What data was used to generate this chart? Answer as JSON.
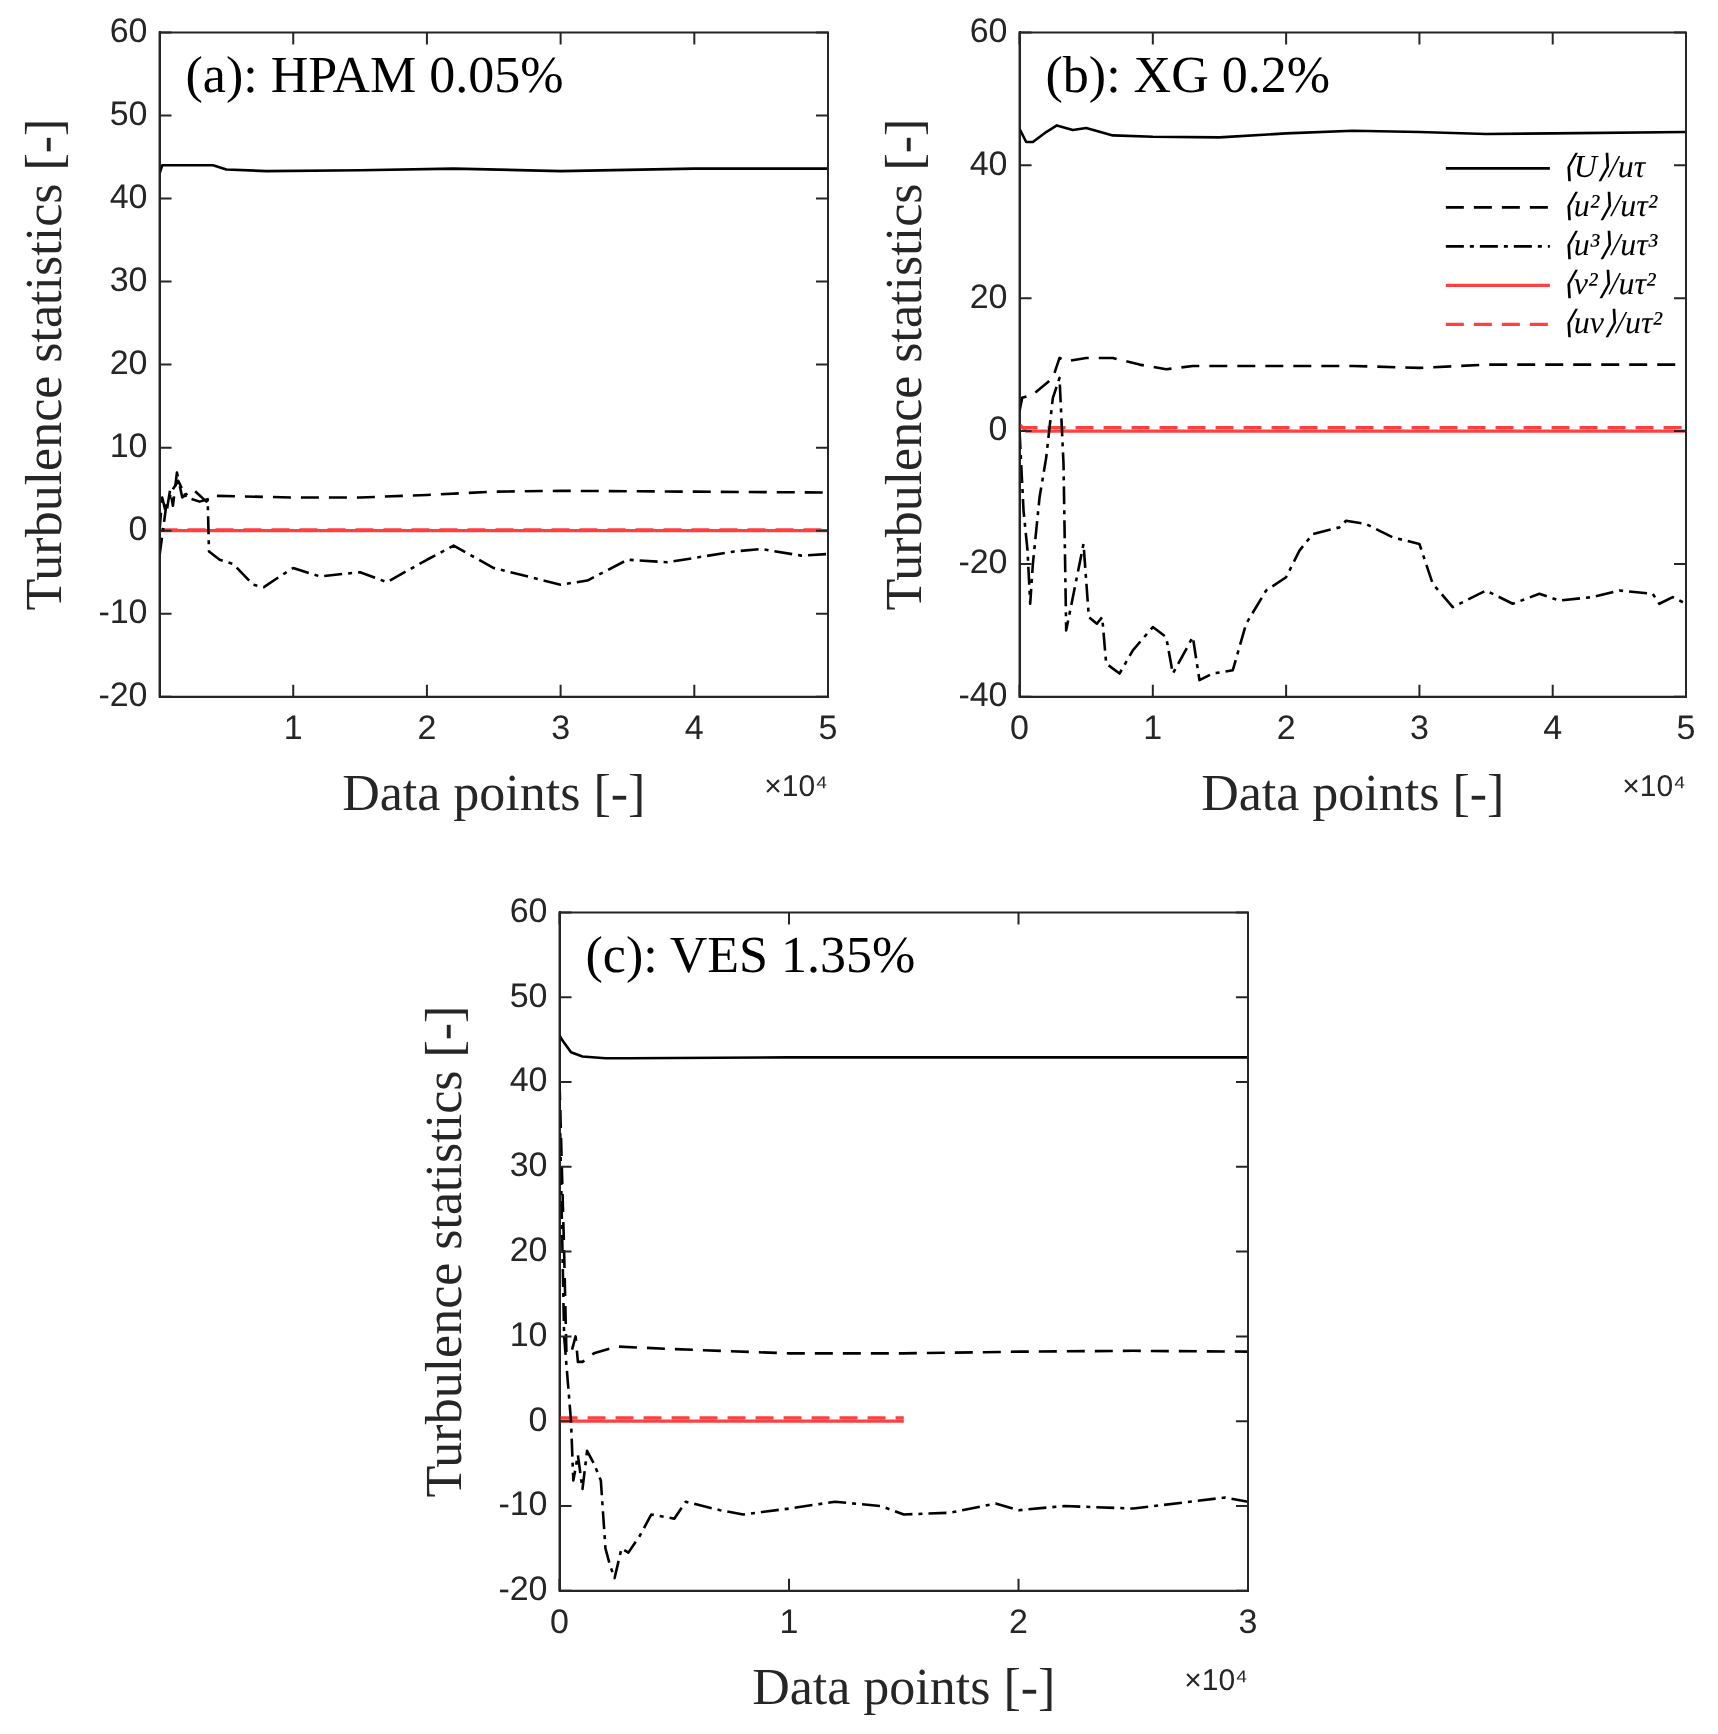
{
  "chart_data": [
    {
      "type": "line",
      "title": "(a): HPAM 0.05%",
      "xlabel": "Data points [-]",
      "ylabel": "Turbulence statistics [-]",
      "annotations": [
        "×10⁴"
      ],
      "xlim": [
        0,
        5
      ],
      "xticks": [
        1,
        2,
        3,
        4,
        5
      ],
      "ylim": [
        -20,
        60
      ],
      "yticks": [
        -20,
        -10,
        0,
        10,
        20,
        30,
        40,
        50,
        60
      ],
      "grid": false,
      "legend": false,
      "marker": "none",
      "series": [
        {
          "color": "#000000",
          "line_style": "solid",
          "x": [
            0,
            0.02,
            0.4,
            0.5,
            0.8,
            1.5,
            2.2,
            3,
            4,
            5
          ],
          "values": [
            43,
            44,
            44,
            43.5,
            43.3,
            43.4,
            43.6,
            43.3,
            43.6,
            43.6
          ]
        },
        {
          "color": "#000000",
          "line_style": "dashed",
          "x": [
            0,
            0.02,
            0.05,
            0.08,
            0.1,
            0.13,
            0.17,
            0.25,
            0.35,
            0.4,
            1,
            1.5,
            2,
            2.5,
            3,
            4,
            5
          ],
          "values": [
            0,
            4,
            2,
            5,
            3,
            7,
            4,
            5,
            3.5,
            4.2,
            4,
            4,
            4.3,
            4.7,
            4.8,
            4.7,
            4.6
          ]
        },
        {
          "color": "#000000",
          "line_style": "dashdot",
          "x": [
            0,
            0.05,
            0.1,
            0.14,
            0.2,
            0.3,
            0.36,
            0.37,
            0.45,
            0.55,
            0.7,
            0.78,
            0.9,
            1,
            1.2,
            1.5,
            1.7,
            2,
            2.2,
            2.5,
            3,
            3.2,
            3.5,
            3.8,
            4.3,
            4.5,
            4.8,
            5
          ],
          "values": [
            -3,
            3,
            5,
            6,
            4,
            3.5,
            3.8,
            -2.5,
            -3.5,
            -4,
            -6.5,
            -6.8,
            -5.5,
            -4.5,
            -5.5,
            -5,
            -6.2,
            -3.5,
            -1.8,
            -4.5,
            -6.5,
            -6,
            -3.5,
            -3.8,
            -2.5,
            -2.2,
            -3,
            -2.8
          ]
        },
        {
          "color": "#ff4040",
          "line_style": "solid",
          "x": [
            0,
            5
          ],
          "values": [
            0,
            0
          ]
        },
        {
          "color": "#ff4040",
          "line_style": "dashed",
          "x": [
            0,
            5
          ],
          "values": [
            0.1,
            0.1
          ]
        }
      ]
    },
    {
      "type": "line",
      "title": "(b): XG 0.2%",
      "xlabel": "Data points [-]",
      "ylabel": "Turbulence statistics [-]",
      "annotations": [
        "×10⁴"
      ],
      "xlim": [
        0,
        5
      ],
      "xticks": [
        0,
        1,
        2,
        3,
        4,
        5
      ],
      "ylim": [
        -40,
        60
      ],
      "yticks": [
        -40,
        -20,
        0,
        20,
        40,
        60
      ],
      "grid": false,
      "legend": "top right",
      "marker": "none",
      "series": [
        {
          "name": "⟨U⟩/uτ",
          "color": "#000000",
          "line_style": "solid",
          "x": [
            0,
            0.05,
            0.1,
            0.2,
            0.28,
            0.4,
            0.5,
            0.7,
            1,
            1.5,
            2,
            2.5,
            3,
            3.5,
            4,
            5
          ],
          "values": [
            45.5,
            43.5,
            43.5,
            45,
            46,
            45.3,
            45.6,
            44.5,
            44.3,
            44.2,
            44.8,
            45.2,
            45,
            44.7,
            44.8,
            45
          ]
        },
        {
          "name": "⟨u²⟩/uτ²",
          "color": "#000000",
          "line_style": "dashed",
          "x": [
            0,
            0.02,
            0.1,
            0.25,
            0.3,
            0.35,
            0.5,
            0.7,
            0.9,
            1.1,
            1.3,
            1.6,
            2,
            2.5,
            3,
            3.5,
            4,
            4.5,
            5
          ],
          "values": [
            3,
            5,
            5.5,
            8,
            11,
            10.5,
            11,
            11,
            10,
            9.3,
            9.8,
            9.8,
            9.8,
            9.8,
            9.5,
            10,
            10,
            10,
            10
          ]
        },
        {
          "name": "⟨u³⟩/uτ³",
          "color": "#000000",
          "line_style": "dashdot",
          "x": [
            0,
            0.03,
            0.06,
            0.08,
            0.1,
            0.15,
            0.2,
            0.25,
            0.3,
            0.33,
            0.35,
            0.4,
            0.45,
            0.48,
            0.52,
            0.58,
            0.62,
            0.65,
            0.75,
            0.85,
            1,
            1.1,
            1.15,
            1.3,
            1.35,
            1.45,
            1.6,
            1.7,
            1.85,
            2,
            2.1,
            2.2,
            2.4,
            2.45,
            2.6,
            2.8,
            3,
            3.1,
            3.25,
            3.5,
            3.7,
            3.9,
            4.05,
            4.3,
            4.5,
            4.75,
            4.8,
            4.9,
            5
          ],
          "values": [
            0,
            -12,
            -18,
            -26,
            -20,
            -10,
            -4,
            5,
            8,
            -5,
            -30,
            -25,
            -20,
            -17,
            -28,
            -29,
            -28,
            -35,
            -36.5,
            -33,
            -29.5,
            -31,
            -36.5,
            -31,
            -37.5,
            -36.5,
            -36,
            -29,
            -24,
            -22,
            -18,
            -15.5,
            -14.5,
            -13.5,
            -14,
            -16,
            -17,
            -23,
            -26.5,
            -24,
            -26,
            -24.5,
            -25.5,
            -25,
            -24,
            -24.5,
            -26,
            -25,
            -26
          ]
        },
        {
          "name": "⟨v²⟩/uτ²",
          "color": "#ff4040",
          "line_style": "solid",
          "x": [
            0,
            0.05,
            3,
            5
          ],
          "values": [
            1,
            0,
            0,
            0
          ]
        },
        {
          "name": "⟨uv⟩/uτ²",
          "color": "#ff4040",
          "line_style": "dashed",
          "x": [
            0,
            5
          ],
          "values": [
            0.5,
            0.5
          ]
        }
      ]
    },
    {
      "type": "line",
      "title": "(c): VES 1.35%",
      "xlabel": "Data points [-]",
      "ylabel": "Turbulence statistics [-]",
      "annotations": [
        "×10⁴"
      ],
      "xlim": [
        0,
        3
      ],
      "xticks": [
        0,
        1,
        2,
        3
      ],
      "ylim": [
        -20,
        60
      ],
      "yticks": [
        -20,
        -10,
        0,
        10,
        20,
        30,
        40,
        50,
        60
      ],
      "grid": false,
      "legend": false,
      "marker": "none",
      "series": [
        {
          "color": "#000000",
          "line_style": "solid",
          "x": [
            0,
            0.01,
            0.05,
            0.1,
            0.2,
            0.3,
            1,
            2,
            3
          ],
          "values": [
            45.5,
            45,
            43.5,
            43,
            42.8,
            42.8,
            42.9,
            42.9,
            42.9
          ]
        },
        {
          "color": "#000000",
          "line_style": "dashed",
          "x": [
            0,
            0.02,
            0.03,
            0.05,
            0.07,
            0.08,
            0.1,
            0.15,
            0.25,
            0.5,
            1,
            1.5,
            2,
            2.5,
            3
          ],
          "values": [
            40,
            20,
            8,
            8,
            10,
            7,
            7,
            8,
            8.8,
            8.5,
            8,
            8,
            8.2,
            8.3,
            8.2
          ]
        },
        {
          "color": "#000000",
          "line_style": "dashdot",
          "x": [
            0,
            0.02,
            0.05,
            0.06,
            0.08,
            0.1,
            0.12,
            0.15,
            0.18,
            0.2,
            0.22,
            0.24,
            0.27,
            0.3,
            0.35,
            0.4,
            0.5,
            0.55,
            0.7,
            0.8,
            1,
            1.2,
            1.4,
            1.5,
            1.7,
            1.9,
            2,
            2.2,
            2.5,
            2.9,
            3
          ],
          "values": [
            38,
            10,
            0,
            -7,
            -4,
            -8,
            -3.5,
            -5,
            -7,
            -15,
            -17,
            -18.5,
            -15,
            -15.5,
            -13.5,
            -11,
            -11.5,
            -9.5,
            -10.5,
            -11,
            -10.3,
            -9.5,
            -10,
            -11,
            -10.8,
            -9.7,
            -10.5,
            -10,
            -10.3,
            -9,
            -9.5
          ]
        },
        {
          "color": "#ff4040",
          "line_style": "solid",
          "x": [
            0,
            1.5
          ],
          "values": [
            0,
            0
          ]
        },
        {
          "color": "#ff4040",
          "line_style": "dashed",
          "x": [
            0,
            1.5
          ],
          "values": [
            0.4,
            0.4
          ]
        }
      ]
    }
  ]
}
